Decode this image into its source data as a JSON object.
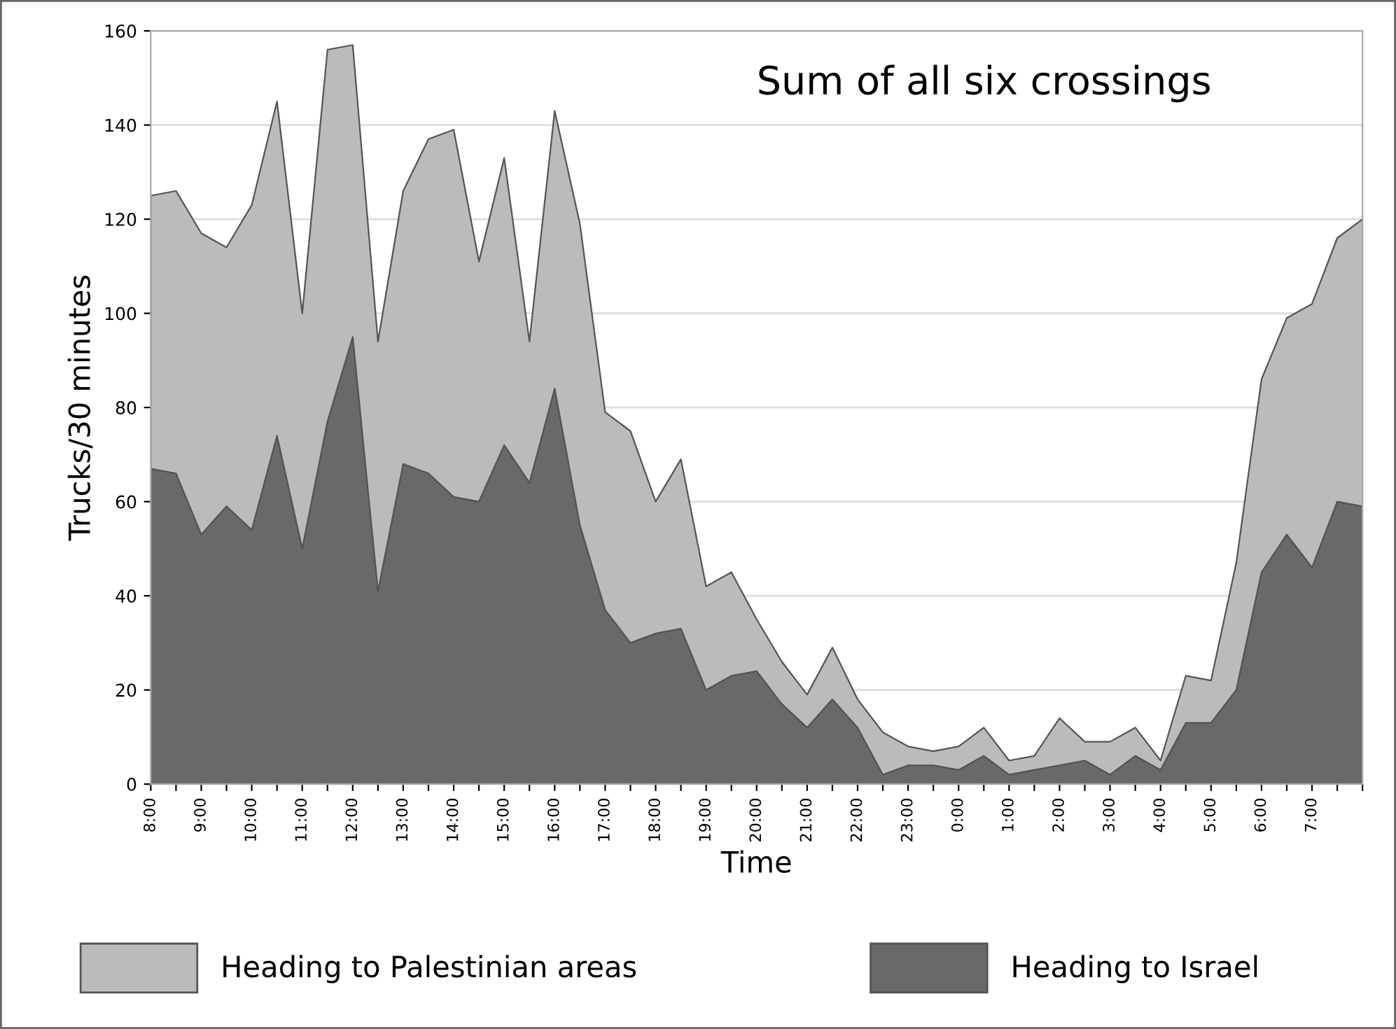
{
  "chart_data": {
    "type": "area",
    "title": "Sum of all six crossings",
    "xlabel": "Time",
    "ylabel": "Trucks/30 minutes",
    "categories": [
      "8:00",
      null,
      "9:00",
      null,
      "10:00",
      null,
      "11:00",
      null,
      "12:00",
      null,
      "13:00",
      null,
      "14:00",
      null,
      "15:00",
      null,
      "16:00",
      null,
      "17:00",
      null,
      "18:00",
      null,
      "19:00",
      null,
      "20:00",
      null,
      "21:00",
      null,
      "22:00",
      null,
      "23:00",
      null,
      "0:00",
      null,
      "1:00",
      null,
      "2:00",
      null,
      "3:00",
      null,
      "4:00",
      null,
      "5:00",
      null,
      "6:00",
      null,
      "7:00",
      null,
      null
    ],
    "stacked": true,
    "series": [
      {
        "name": "Heading to Israel",
        "color": "#696969",
        "values": [
          67,
          66,
          53,
          59,
          54,
          74,
          50,
          77,
          95,
          41,
          68,
          66,
          61,
          60,
          72,
          64,
          84,
          55,
          37,
          30,
          32,
          33,
          20,
          23,
          24,
          17,
          12,
          18,
          12,
          2,
          4,
          4,
          3,
          6,
          2,
          3,
          4,
          5,
          2,
          6,
          3,
          13,
          13,
          20,
          45,
          53,
          46,
          60,
          59
        ]
      },
      {
        "name": "Heading to Palestinian areas",
        "color": "#bbbbbb",
        "values": [
          58,
          60,
          64,
          55,
          69,
          71,
          50,
          79,
          62,
          53,
          58,
          71,
          78,
          51,
          61,
          30,
          59,
          64,
          42,
          45,
          28,
          36,
          22,
          22,
          11,
          9,
          7,
          11,
          6,
          9,
          4,
          3,
          5,
          6,
          3,
          3,
          10,
          4,
          7,
          6,
          2,
          10,
          9,
          27,
          41,
          46,
          56,
          56,
          61
        ]
      }
    ],
    "ylim": [
      0,
      160
    ],
    "yticks": [
      0,
      20,
      40,
      60,
      80,
      100,
      120,
      140,
      160
    ],
    "grid": "y",
    "legend": "bottom"
  }
}
